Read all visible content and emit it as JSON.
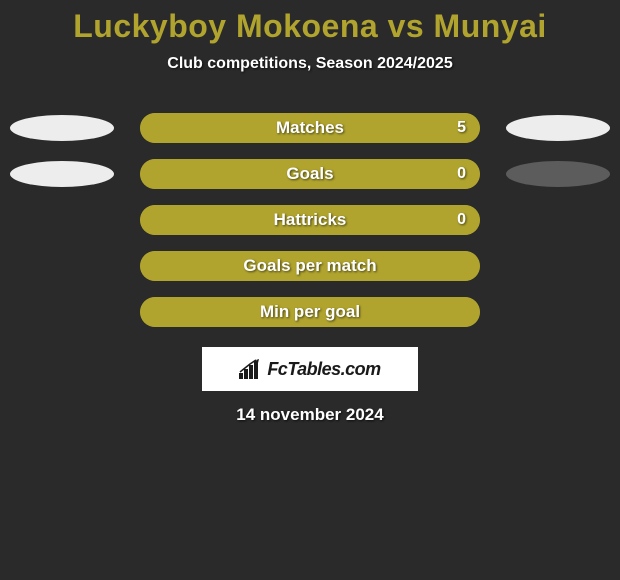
{
  "title": "Luckyboy Mokoena vs Munyai",
  "title_color": "#b0a42e",
  "subtitle": "Club competitions, Season 2024/2025",
  "background_color": "#2a2a2a",
  "stats": [
    {
      "label": "Matches",
      "value": "5",
      "fill_pct": 100,
      "bar_color": "#b0a42e",
      "track_color": "#b0a42e",
      "show_left_ellipse": true,
      "left_ellipse_color": "#ededed",
      "show_right_ellipse": true,
      "right_ellipse_color": "#ededed",
      "show_value": true
    },
    {
      "label": "Goals",
      "value": "0",
      "fill_pct": 100,
      "bar_color": "#b0a42e",
      "track_color": "#b0a42e",
      "show_left_ellipse": true,
      "left_ellipse_color": "#ededed",
      "show_right_ellipse": true,
      "right_ellipse_color": "#5c5c5c",
      "show_value": true
    },
    {
      "label": "Hattricks",
      "value": "0",
      "fill_pct": 100,
      "bar_color": "#b0a42e",
      "track_color": "#b0a42e",
      "show_left_ellipse": false,
      "left_ellipse_color": "#ededed",
      "show_right_ellipse": false,
      "right_ellipse_color": "#ededed",
      "show_value": true
    },
    {
      "label": "Goals per match",
      "value": "",
      "fill_pct": 100,
      "bar_color": "#b0a42e",
      "track_color": "#b0a42e",
      "show_left_ellipse": false,
      "left_ellipse_color": "#ededed",
      "show_right_ellipse": false,
      "right_ellipse_color": "#ededed",
      "show_value": false
    },
    {
      "label": "Min per goal",
      "value": "",
      "fill_pct": 100,
      "bar_color": "#b0a42e",
      "track_color": "#b0a42e",
      "show_left_ellipse": false,
      "left_ellipse_color": "#ededed",
      "show_right_ellipse": false,
      "right_ellipse_color": "#ededed",
      "show_value": false
    }
  ],
  "logo_text": "FcTables.com",
  "date": "14 november 2024"
}
